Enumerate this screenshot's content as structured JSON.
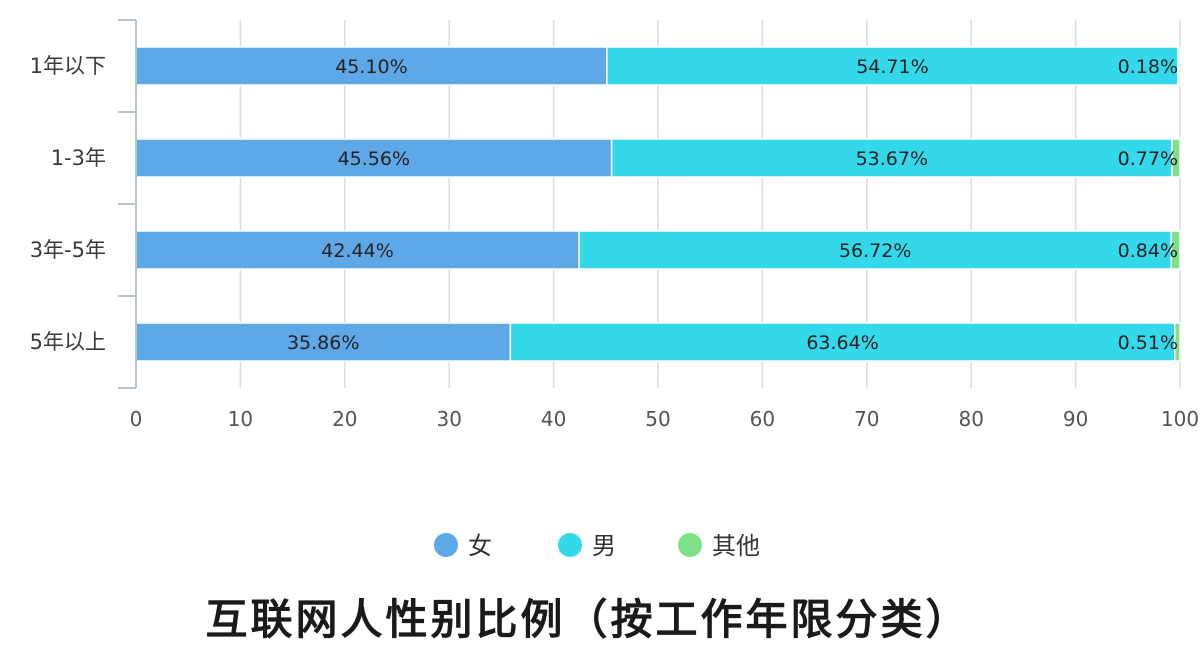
{
  "chart_data": {
    "type": "bar",
    "orientation": "horizontal",
    "stacked": true,
    "title": "互联网人性别比例（按工作年限分类）",
    "categories": [
      "1年以下",
      "1-3年",
      "3年-5年",
      "5年以上"
    ],
    "series": [
      {
        "name": "女",
        "color": "#5fa8e8",
        "values": [
          45.1,
          45.56,
          42.44,
          35.86
        ],
        "labels": [
          "45.10%",
          "45.56%",
          "42.44%",
          "35.86%"
        ]
      },
      {
        "name": "男",
        "color": "#33d8ea",
        "values": [
          54.71,
          53.67,
          56.72,
          63.64
        ],
        "labels": [
          "54.71%",
          "53.67%",
          "56.72%",
          "63.64%"
        ]
      },
      {
        "name": "其他",
        "color": "#7ee087",
        "values": [
          0.18,
          0.77,
          0.84,
          0.51
        ],
        "labels": [
          "0.18%",
          "0.77%",
          "0.84%",
          "0.51%"
        ]
      }
    ],
    "xlim": [
      0,
      100
    ],
    "xticks": [
      "0",
      "10",
      "20",
      "30",
      "40",
      "50",
      "60",
      "70",
      "80",
      "90",
      "100"
    ],
    "grid": true,
    "legend_position": "bottom"
  }
}
